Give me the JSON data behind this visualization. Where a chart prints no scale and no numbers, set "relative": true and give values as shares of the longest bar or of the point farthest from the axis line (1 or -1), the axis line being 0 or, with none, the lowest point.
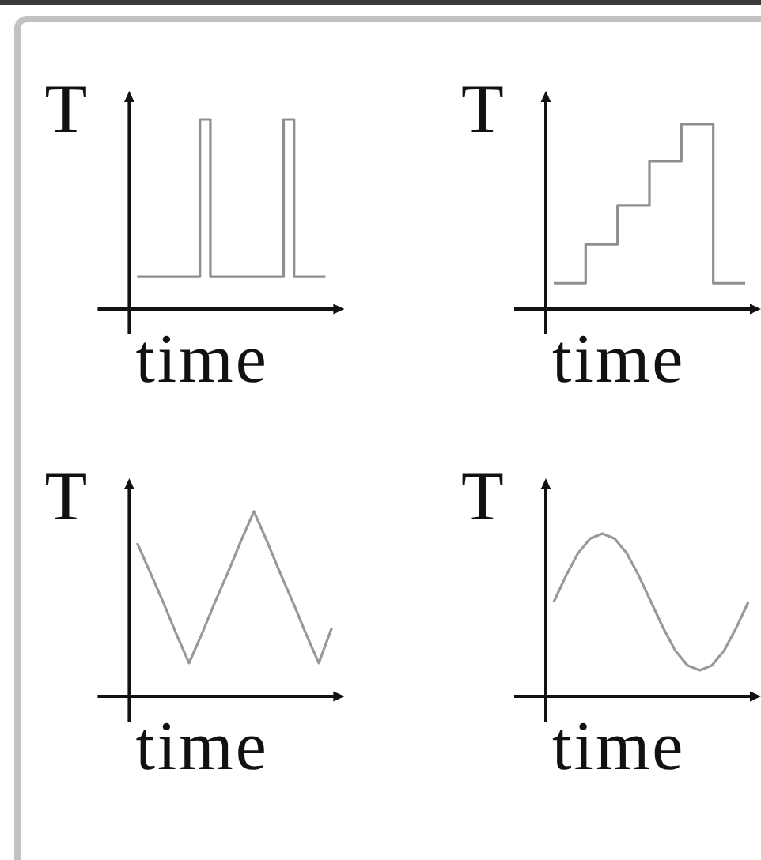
{
  "chart_data": [
    {
      "type": "step",
      "xlabel": "time",
      "ylabel": "T",
      "relative": true,
      "categories": [
        null,
        null,
        null,
        null,
        null,
        null,
        null,
        null,
        null,
        null,
        null,
        null,
        null,
        null,
        null,
        null,
        null,
        null,
        null
      ],
      "series": [
        {
          "color": "#8f8f8f",
          "values": [
            0.17,
            0.17,
            0.17,
            0.17,
            0.17,
            0.17,
            1,
            0.17,
            0.17,
            0.17,
            0.17,
            0.17,
            0.17,
            0.17,
            1,
            0.17,
            0.17,
            0.17,
            0.17
          ]
        }
      ]
    },
    {
      "type": "step",
      "xlabel": "time",
      "ylabel": "T",
      "relative": true,
      "categories": [
        null,
        null,
        null,
        null,
        null,
        null,
        null
      ],
      "series": [
        {
          "color": "#8f8f8f",
          "values": [
            0.14,
            0.35,
            0.56,
            0.8,
            1,
            0.14,
            0.14
          ]
        }
      ]
    },
    {
      "type": "line",
      "xlabel": "time",
      "ylabel": "T",
      "relative": true,
      "categories": [
        null,
        null,
        null,
        null,
        null,
        null,
        null,
        null,
        null,
        null,
        null,
        null,
        null,
        null,
        null,
        null
      ],
      "series": [
        {
          "color": "#999999",
          "values": [
            0.83,
            0.67,
            0.51,
            0.34,
            0.18,
            0.34,
            0.51,
            0.67,
            0.84,
            1,
            0.84,
            0.67,
            0.51,
            0.34,
            0.18,
            0.37
          ]
        }
      ]
    },
    {
      "type": "line",
      "xlabel": "time",
      "ylabel": "T",
      "relative": true,
      "categories": [
        null,
        null,
        null,
        null,
        null,
        null,
        null,
        null,
        null,
        null,
        null,
        null,
        null,
        null,
        null,
        null,
        null
      ],
      "series": [
        {
          "color": "#999999",
          "values": [
            0.58,
            0.74,
            0.88,
            0.97,
            1,
            0.97,
            0.88,
            0.74,
            0.58,
            0.42,
            0.28,
            0.19,
            0.16,
            0.19,
            0.28,
            0.42,
            0.58
          ]
        }
      ]
    }
  ]
}
